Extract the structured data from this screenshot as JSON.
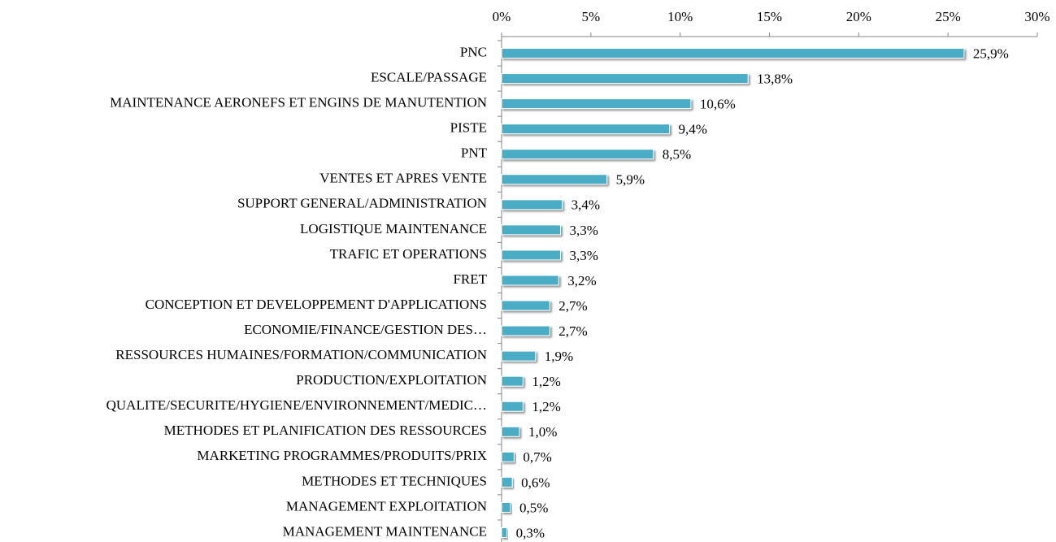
{
  "chart_data": {
    "type": "bar",
    "orientation": "horizontal",
    "color": "#4bacc6",
    "categories": [
      "PNC",
      "ESCALE/PASSAGE",
      "MAINTENANCE AERONEFS ET ENGINS DE MANUTENTION",
      "PISTE",
      "PNT",
      "VENTES ET APRES VENTE",
      "SUPPORT GENERAL/ADMINISTRATION",
      "LOGISTIQUE MAINTENANCE",
      "TRAFIC ET OPERATIONS",
      "FRET",
      "CONCEPTION ET DEVELOPPEMENT D'APPLICATIONS",
      "ECONOMIE/FINANCE/GESTION DES…",
      "RESSOURCES HUMAINES/FORMATION/COMMUNICATION",
      "PRODUCTION/EXPLOITATION",
      "QUALITE/SECURITE/HYGIENE/ENVIRONNEMENT/MEDIC…",
      "METHODES ET PLANIFICATION DES RESSOURCES",
      "MARKETING PROGRAMMES/PRODUITS/PRIX",
      "METHODES ET TECHNIQUES",
      "MANAGEMENT EXPLOITATION",
      "MANAGEMENT MAINTENANCE"
    ],
    "values": [
      25.9,
      13.8,
      10.6,
      9.4,
      8.5,
      5.9,
      3.4,
      3.3,
      3.3,
      3.2,
      2.7,
      2.7,
      1.9,
      1.2,
      1.2,
      1.0,
      0.7,
      0.6,
      0.5,
      0.3
    ],
    "value_labels": [
      "25,9%",
      "13,8%",
      "10,6%",
      "9,4%",
      "8,5%",
      "5,9%",
      "3,4%",
      "3,3%",
      "3,3%",
      "3,2%",
      "2,7%",
      "2,7%",
      "1,9%",
      "1,2%",
      "1,2%",
      "1,0%",
      "0,7%",
      "0,6%",
      "0,5%",
      "0,3%"
    ],
    "xlim": [
      0,
      30
    ],
    "xticks": [
      {
        "value": 0,
        "label": "0%"
      },
      {
        "value": 5,
        "label": "5%"
      },
      {
        "value": 10,
        "label": "10%"
      },
      {
        "value": 15,
        "label": "15%"
      },
      {
        "value": 20,
        "label": "20%"
      },
      {
        "value": 25,
        "label": "25%"
      },
      {
        "value": 30,
        "label": "30%"
      }
    ]
  }
}
